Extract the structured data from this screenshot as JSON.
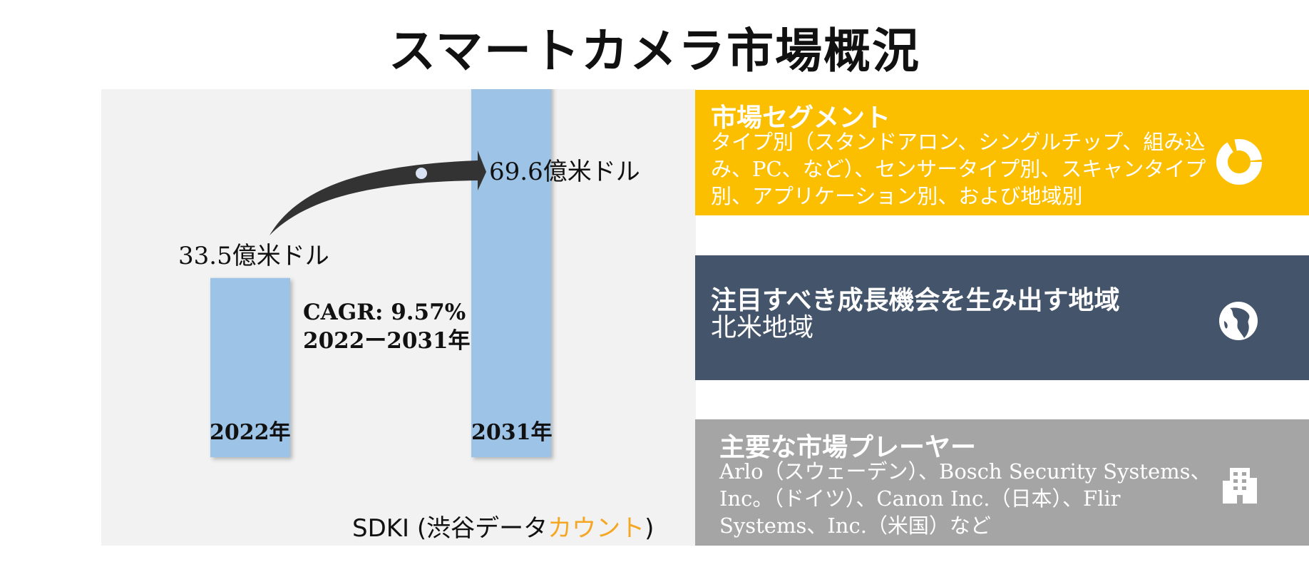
{
  "title": "スマートカメラ市場概況",
  "chart_data": {
    "type": "bar",
    "categories": [
      "2022年",
      "2031年"
    ],
    "values": [
      33.5,
      69.6
    ],
    "value_labels": [
      "33.5億米ドル",
      "69.6億米ドル"
    ],
    "cagr_label": "CAGR: 9.57%",
    "cagr_period": "2022ー2031年",
    "bar_color": "#9dc3e6"
  },
  "source": {
    "prefix": "SDKI (渋谷データ",
    "accent": "カウント",
    "suffix": ")",
    "accent_color": "#f5a623"
  },
  "segments": {
    "heading": "市場セグメント",
    "text": "タイプ別（スタンドアロン、シングルチップ、組み込み、PC、など）、センサータイプ別、スキャンタイプ別、アプリケーション別、および地域別",
    "icon": "donut-chart-icon",
    "color": "#fcbf00"
  },
  "region": {
    "heading": "注目すべき成長機会を生み出す地域",
    "text": "北米地域",
    "icon": "globe-icon",
    "color": "#44546a"
  },
  "players": {
    "heading": "主要な市場プレーヤー",
    "text": "Arlo（スウェーデン）、Bosch Security Systems、Inc。（ドイツ）、Canon Inc.（日本）、Flir Systems、Inc.（米国）など",
    "icon": "building-icon",
    "color": "#a5a5a5"
  }
}
